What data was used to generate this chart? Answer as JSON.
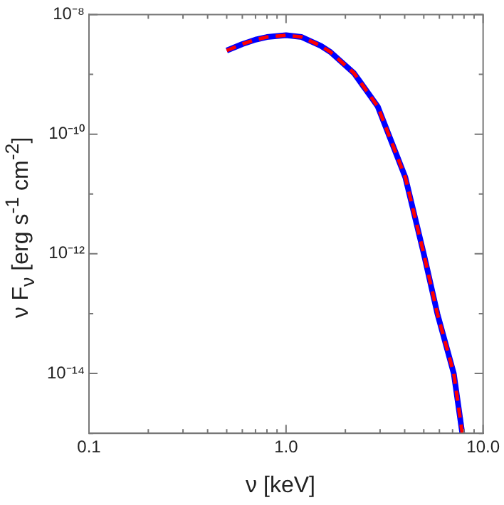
{
  "chart_data": {
    "type": "line",
    "xlabel": "ν [keV]",
    "ylabel": "ν F$_{ν}$ [erg s$^{-1}$ cm$^{-2}$]",
    "log": "xy",
    "grid": false,
    "legend": false,
    "marker": "none",
    "x": [
      0.5,
      0.6,
      0.7,
      0.8,
      1.0,
      1.2,
      1.5,
      1.68,
      2.21,
      2.92,
      4.03,
      5.0,
      5.86,
      7.1,
      7.84
    ],
    "series": [
      {
        "color": "#0000ff",
        "line_style": "solid",
        "values": [
          2.5e-09,
          3.2e-09,
          3.8e-09,
          4.2e-09,
          4.5e-09,
          4.2e-09,
          3e-09,
          2.36e-09,
          1.05e-09,
          2.9e-10,
          1.9e-11,
          1e-12,
          1e-13,
          1e-14,
          1e-15
        ]
      },
      {
        "color": "#ff0000",
        "line_style": "dashed",
        "values": [
          2.5e-09,
          3.2e-09,
          3.8e-09,
          4.2e-09,
          4.5e-09,
          4.2e-09,
          3e-09,
          2.36e-09,
          1.05e-09,
          2.9e-10,
          1.9e-11,
          1e-12,
          1e-13,
          1e-14,
          1e-15
        ]
      }
    ],
    "xlim": [
      0.1,
      10
    ],
    "xticks": [
      0.1,
      {
        "value": 0.2,
        "label": null
      },
      {
        "value": 0.3,
        "label": null
      },
      {
        "value": 0.4,
        "label": null
      },
      {
        "value": 0.5,
        "label": null
      },
      {
        "value": 0.6,
        "label": null
      },
      {
        "value": 0.7,
        "label": null
      },
      {
        "value": 0.8,
        "label": null
      },
      {
        "value": 0.9,
        "label": null
      },
      {
        "value": 1,
        "label": "1.0"
      },
      {
        "value": 2,
        "label": null
      },
      {
        "value": 3,
        "label": null
      },
      {
        "value": 4,
        "label": null
      },
      {
        "value": 5,
        "label": null
      },
      {
        "value": 6,
        "label": null
      },
      {
        "value": 7,
        "label": null
      },
      {
        "value": 8,
        "label": null
      },
      {
        "value": 9,
        "label": null
      },
      {
        "value": 10,
        "label": "10.0"
      }
    ],
    "ylim": [
      1e-15,
      1e-08
    ],
    "yticks": [
      {
        "value": 1e-15,
        "label": null
      },
      {
        "value": 1e-14,
        "label": "10⁻¹⁴"
      },
      {
        "value": 1e-13,
        "label": null
      },
      {
        "value": 1e-12,
        "label": "10⁻¹²"
      },
      {
        "value": 1e-11,
        "label": null
      },
      {
        "value": 1e-10,
        "label": "10⁻¹⁰"
      },
      {
        "value": 1e-09,
        "label": null
      },
      {
        "value": 1e-08,
        "label": "10⁻⁸"
      }
    ]
  }
}
